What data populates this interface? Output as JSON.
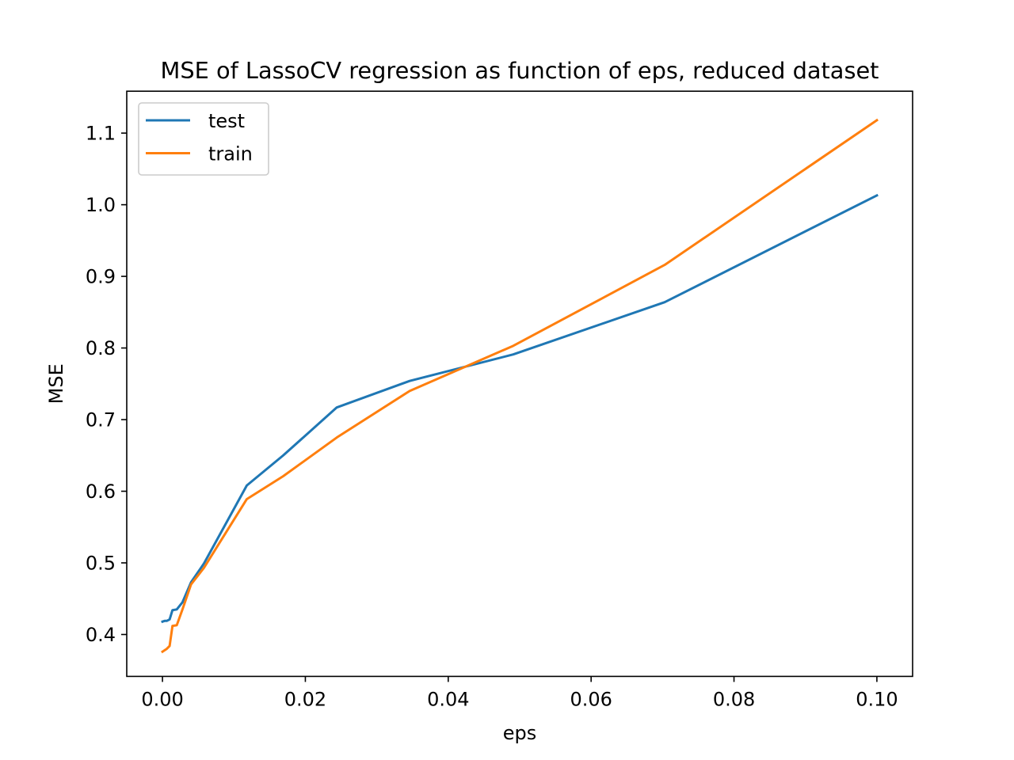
{
  "chart_data": {
    "type": "line",
    "title": "MSE of LassoCV regression as function of eps, reduced dataset",
    "xlabel": "eps",
    "ylabel": "MSE",
    "xlim": [
      -0.005,
      0.105
    ],
    "ylim": [
      0.3415,
      1.1585
    ],
    "xticks": [
      0.0,
      0.02,
      0.04,
      0.06,
      0.08,
      0.1
    ],
    "xtick_labels": [
      "0.00",
      "0.02",
      "0.04",
      "0.06",
      "0.08",
      "0.10"
    ],
    "yticks": [
      0.4,
      0.5,
      0.6,
      0.7,
      0.8,
      0.9,
      1.0,
      1.1
    ],
    "ytick_labels": [
      "0.4",
      "0.5",
      "0.6",
      "0.7",
      "0.8",
      "0.9",
      "1.0",
      "1.1"
    ],
    "grid": false,
    "legend_position": "upper-left",
    "series": [
      {
        "name": "test",
        "color": "#1f77b4",
        "x": [
          0.0,
          0.0003,
          0.0006,
          0.001,
          0.0014,
          0.002,
          0.0028,
          0.004,
          0.0058,
          0.0118,
          0.0169,
          0.0244,
          0.0346,
          0.0491,
          0.0703,
          0.1
        ],
        "y": [
          0.418,
          0.419,
          0.419,
          0.421,
          0.434,
          0.435,
          0.445,
          0.473,
          0.499,
          0.608,
          0.65,
          0.717,
          0.754,
          0.791,
          0.864,
          1.013
        ]
      },
      {
        "name": "train",
        "color": "#ff7f0e",
        "x": [
          0.0,
          0.0003,
          0.0006,
          0.001,
          0.0014,
          0.002,
          0.0028,
          0.004,
          0.0058,
          0.0118,
          0.0169,
          0.0244,
          0.0346,
          0.0491,
          0.0703,
          0.1
        ],
        "y": [
          0.376,
          0.378,
          0.38,
          0.384,
          0.412,
          0.413,
          0.435,
          0.47,
          0.493,
          0.589,
          0.621,
          0.675,
          0.74,
          0.803,
          0.916,
          1.118
        ]
      }
    ]
  }
}
